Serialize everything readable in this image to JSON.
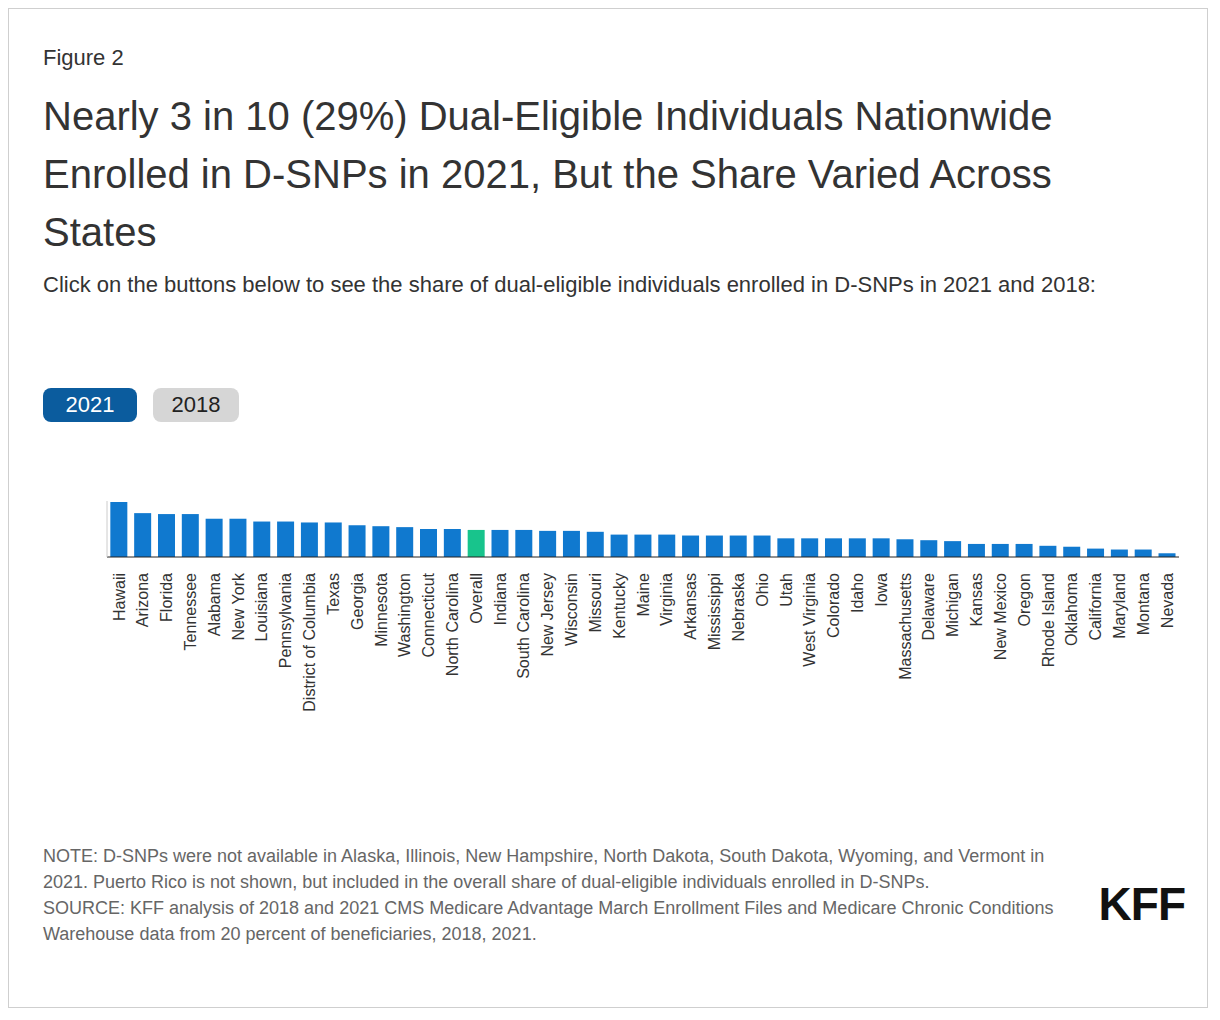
{
  "figure_label": "Figure 2",
  "buttons": [
    "2021",
    "2018"
  ],
  "note": "NOTE: D-SNPs were not available in Alaska, Illinois, New Hampshire, North Dakota, South Dakota, Wyoming, and Vermont in 2021. Puerto Rico is not shown, but included in the overall share of dual-eligible individuals enrolled in D-SNPs.",
  "source": "SOURCE: KFF analysis of 2018 and 2021 CMS Medicare Advantage March Enrollment Files and Medicare Chronic Conditions Warehouse data from 20 percent of beneficiaries, 2018, 2021.",
  "logo": "KFF",
  "chart_data": {
    "type": "bar",
    "title": "Nearly 3 in 10 (29%) Dual-Eligible Individuals Nationwide Enrolled in D-SNPs in 2021, But the Share Varied Across States",
    "subtitle": "Click on the buttons below to see the share of dual-eligible individuals enrolled in D-SNPs in 2021 and 2018:",
    "categories": [
      "Hawaii",
      "Arizona",
      "Florida",
      "Tennessee",
      "Alabama",
      "New York",
      "Louisiana",
      "Pennsylvania",
      "District of Columbia",
      "Texas",
      "Georgia",
      "Minnesota",
      "Washington",
      "Connecticut",
      "North Carolina",
      "Overall",
      "Indiana",
      "South Carolina",
      "New Jersey",
      "Wisconsin",
      "Missouri",
      "Kentucky",
      "Maine",
      "Virginia",
      "Arkansas",
      "Mississippi",
      "Nebraska",
      "Ohio",
      "Utah",
      "West Virginia",
      "Colorado",
      "Idaho",
      "Iowa",
      "Massachusetts",
      "Delaware",
      "Michigan",
      "Kansas",
      "New Mexico",
      "Oregon",
      "Rhode Island",
      "Oklahoma",
      "California",
      "Maryland",
      "Montana",
      "Nevada"
    ],
    "values": [
      59,
      47,
      46,
      46,
      41,
      41,
      38,
      38,
      37,
      37,
      34,
      33,
      32,
      30,
      30,
      29,
      29,
      29,
      28,
      28,
      27,
      24,
      24,
      24,
      23,
      23,
      23,
      23,
      20,
      20,
      20,
      20,
      20,
      19,
      18,
      17,
      14,
      14,
      14,
      12,
      11,
      9,
      8,
      8,
      4
    ],
    "colors": [
      "#1079cf",
      "#1079cf",
      "#1079cf",
      "#1079cf",
      "#1079cf",
      "#1079cf",
      "#1079cf",
      "#1079cf",
      "#1079cf",
      "#1079cf",
      "#1079cf",
      "#1079cf",
      "#1079cf",
      "#1079cf",
      "#1079cf",
      "#18c48c",
      "#1079cf",
      "#1079cf",
      "#1079cf",
      "#1079cf",
      "#1079cf",
      "#1079cf",
      "#1079cf",
      "#1079cf",
      "#1079cf",
      "#1079cf",
      "#1079cf",
      "#1079cf",
      "#1079cf",
      "#1079cf",
      "#1079cf",
      "#1079cf",
      "#1079cf",
      "#1079cf",
      "#1079cf",
      "#1079cf",
      "#1079cf",
      "#1079cf",
      "#1079cf",
      "#1079cf",
      "#1079cf",
      "#1079cf",
      "#1079cf",
      "#1079cf",
      "#1079cf"
    ],
    "ylim": [
      0,
      60
    ],
    "tick_labels": "x",
    "grid": false
  }
}
